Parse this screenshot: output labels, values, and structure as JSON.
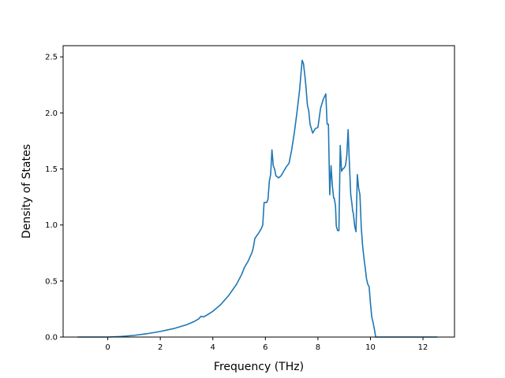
{
  "chart_data": {
    "type": "line",
    "title": "",
    "xlabel": "Frequency (THz)",
    "ylabel": "Density of States",
    "xlim": [
      -1.7,
      13.2
    ],
    "ylim": [
      0.0,
      2.6
    ],
    "x_ticks": [
      0,
      2,
      4,
      6,
      8,
      10,
      12
    ],
    "x_tick_labels": [
      "0",
      "2",
      "4",
      "6",
      "8",
      "10",
      "12"
    ],
    "y_ticks": [
      0.0,
      0.5,
      1.0,
      1.5,
      2.0,
      2.5
    ],
    "y_tick_labels": [
      "0.0",
      "0.5",
      "1.0",
      "1.5",
      "2.0",
      "2.5"
    ],
    "grid": false,
    "legend": "none",
    "line_color": "#1f77b4",
    "series": [
      {
        "x": [
          -1.15,
          0.0,
          0.5,
          1.0,
          1.5,
          2.0,
          2.5,
          3.0,
          3.3,
          3.45,
          3.55,
          3.65,
          3.8,
          4.0,
          4.3,
          4.6,
          4.9,
          5.1,
          5.2,
          5.35,
          5.5,
          5.55,
          5.6,
          5.75,
          5.85,
          5.9,
          5.95,
          6.05,
          6.1,
          6.15,
          6.2,
          6.25,
          6.3,
          6.35,
          6.4,
          6.5,
          6.6,
          6.7,
          6.8,
          6.9,
          7.0,
          7.1,
          7.2,
          7.3,
          7.4,
          7.45,
          7.5,
          7.55,
          7.6,
          7.65,
          7.7,
          7.8,
          7.9,
          8.0,
          8.1,
          8.2,
          8.3,
          8.35,
          8.4,
          8.45,
          8.5,
          8.55,
          8.6,
          8.62,
          8.65,
          8.67,
          8.7,
          8.75,
          8.8,
          8.85,
          8.9,
          8.95,
          9.0,
          9.05,
          9.1,
          9.15,
          9.2,
          9.25,
          9.3,
          9.32,
          9.35,
          9.4,
          9.45,
          9.5,
          9.55,
          9.6,
          9.65,
          9.7,
          9.75,
          9.8,
          9.85,
          9.9,
          9.95,
          10.0,
          10.05,
          10.1,
          10.15,
          10.2,
          10.25,
          10.3,
          10.35,
          10.4,
          10.45,
          10.5,
          10.55,
          10.6,
          10.7,
          10.8,
          10.9,
          11.0,
          11.1,
          11.2,
          11.3,
          11.4,
          11.5,
          11.7,
          12.0,
          12.55
        ],
        "y": [
          0.0,
          0.0,
          0.005,
          0.015,
          0.03,
          0.05,
          0.075,
          0.11,
          0.14,
          0.16,
          0.185,
          0.18,
          0.2,
          0.23,
          0.29,
          0.37,
          0.47,
          0.56,
          0.62,
          0.68,
          0.76,
          0.81,
          0.88,
          0.93,
          0.97,
          1.0,
          1.2,
          1.2,
          1.23,
          1.39,
          1.45,
          1.67,
          1.53,
          1.5,
          1.44,
          1.42,
          1.44,
          1.48,
          1.52,
          1.55,
          1.67,
          1.82,
          2.0,
          2.2,
          2.47,
          2.44,
          2.34,
          2.22,
          2.07,
          2.02,
          1.9,
          1.82,
          1.86,
          1.87,
          2.04,
          2.12,
          2.17,
          1.9,
          1.9,
          1.27,
          1.53,
          1.35,
          1.24,
          1.24,
          1.2,
          1.17,
          0.99,
          0.95,
          0.95,
          1.71,
          1.48,
          1.5,
          1.51,
          1.53,
          1.62,
          1.85,
          1.54,
          1.27,
          1.18,
          1.13,
          1.1,
          0.99,
          0.94,
          1.45,
          1.33,
          1.27,
          0.98,
          0.82,
          0.71,
          0.62,
          0.52,
          0.47,
          0.45,
          0.3,
          0.18,
          0.13,
          0.07,
          0.0,
          0.0,
          0.0,
          0.0,
          0.0,
          0.0,
          0.0,
          0.0,
          0.0,
          0.0,
          0.0,
          0.0,
          0.0,
          0.0,
          0.0,
          0.0,
          0.0,
          0.0,
          0.0,
          0.0,
          0.0
        ]
      }
    ]
  }
}
